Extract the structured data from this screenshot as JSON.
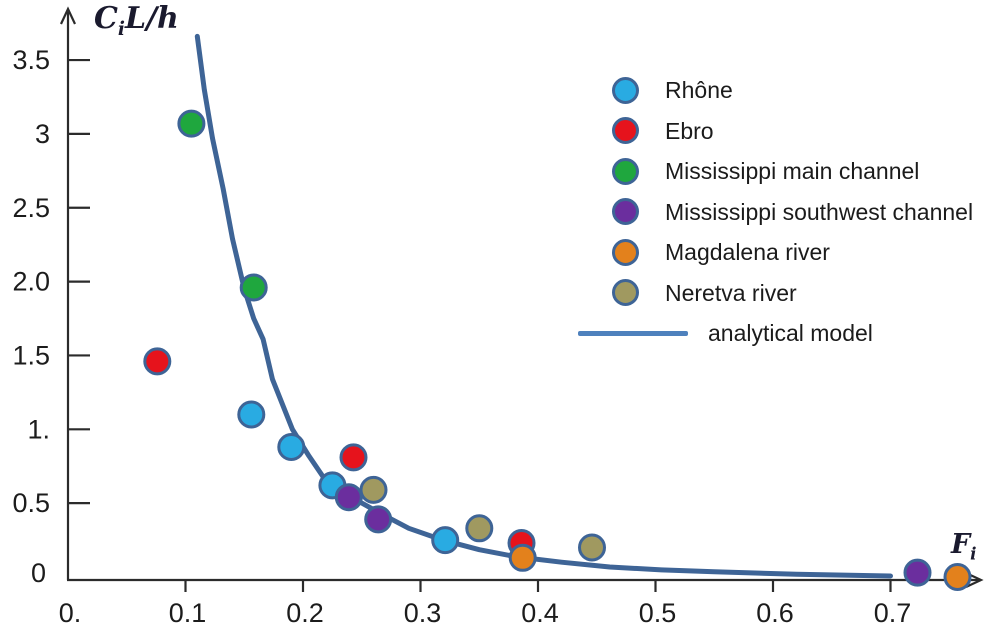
{
  "chart_data": {
    "type": "scatter",
    "title": "",
    "xlabel": "Fi",
    "ylabel": "CiL/h",
    "xlabel_parts": {
      "main": "F",
      "sub": "i"
    },
    "ylabel_parts": {
      "main": "C",
      "sub": "i",
      "rest": "L/h"
    },
    "xlim": [
      0,
      0.78
    ],
    "ylim": [
      0,
      3.75
    ],
    "grid": false,
    "legend_position": "upper-right",
    "axis_color": "#2b2b2b",
    "tick_label_color": "#1c1c1c",
    "x_ticks": [
      {
        "v": 0.0,
        "label": "0."
      },
      {
        "v": 0.1,
        "label": "0.1"
      },
      {
        "v": 0.2,
        "label": "0.2"
      },
      {
        "v": 0.3,
        "label": "0.3"
      },
      {
        "v": 0.4,
        "label": "0.4"
      },
      {
        "v": 0.5,
        "label": "0.5"
      },
      {
        "v": 0.6,
        "label": "0.6"
      },
      {
        "v": 0.7,
        "label": "0.7"
      }
    ],
    "y_ticks": [
      {
        "v": 0.0,
        "label": "0"
      },
      {
        "v": 0.5,
        "label": "0.5"
      },
      {
        "v": 1.0,
        "label": "1."
      },
      {
        "v": 1.5,
        "label": "1.5"
      },
      {
        "v": 2.0,
        "label": "2.0"
      },
      {
        "v": 2.5,
        "label": "2.5"
      },
      {
        "v": 3.0,
        "label": "3"
      },
      {
        "v": 3.5,
        "label": "3.5"
      }
    ],
    "marker": {
      "radius": 12.5,
      "border_color": "#3E6496",
      "border_width": 3
    },
    "series": [
      {
        "name": "Rhône",
        "color": "#29ABE2",
        "points": [
          [
            0.156,
            1.1
          ],
          [
            0.19,
            0.88
          ],
          [
            0.225,
            0.62
          ],
          [
            0.321,
            0.25
          ]
        ]
      },
      {
        "name": "Ebro",
        "color": "#E6131C",
        "points": [
          [
            0.076,
            1.46
          ],
          [
            0.243,
            0.81
          ],
          [
            0.386,
            0.23
          ]
        ]
      },
      {
        "name": "Mississippi main channel",
        "color": "#1FA73E",
        "points": [
          [
            0.105,
            3.07
          ],
          [
            0.158,
            1.96
          ]
        ]
      },
      {
        "name": "Mississippi southwest channel",
        "color": "#6B2E9E",
        "points": [
          [
            0.239,
            0.54
          ],
          [
            0.264,
            0.39
          ],
          [
            0.723,
            0.03
          ]
        ]
      },
      {
        "name": "Magdalena river",
        "color": "#E3811C",
        "points": [
          [
            0.387,
            0.13
          ],
          [
            0.757,
            0.0
          ]
        ]
      },
      {
        "name": "Neretva river",
        "color": "#A09960",
        "points": [
          [
            0.26,
            0.59
          ],
          [
            0.35,
            0.33
          ],
          [
            0.446,
            0.2
          ]
        ]
      }
    ],
    "model": {
      "name": "analytical model",
      "legend_color": "#4E81BD",
      "curve_color": "#3E6496",
      "curve_width": 5,
      "points": [
        [
          0.11,
          3.66
        ],
        [
          0.116,
          3.3
        ],
        [
          0.123,
          2.97
        ],
        [
          0.132,
          2.63
        ],
        [
          0.14,
          2.29
        ],
        [
          0.15,
          1.95
        ],
        [
          0.158,
          1.75
        ],
        [
          0.166,
          1.61
        ],
        [
          0.174,
          1.34
        ],
        [
          0.191,
          1.0
        ],
        [
          0.205,
          0.82
        ],
        [
          0.217,
          0.68
        ],
        [
          0.24,
          0.545
        ],
        [
          0.265,
          0.435
        ],
        [
          0.29,
          0.33
        ],
        [
          0.319,
          0.25
        ],
        [
          0.35,
          0.185
        ],
        [
          0.382,
          0.136
        ],
        [
          0.42,
          0.1
        ],
        [
          0.461,
          0.068
        ],
        [
          0.505,
          0.048
        ],
        [
          0.55,
          0.035
        ],
        [
          0.62,
          0.018
        ],
        [
          0.7,
          0.007
        ]
      ]
    }
  }
}
